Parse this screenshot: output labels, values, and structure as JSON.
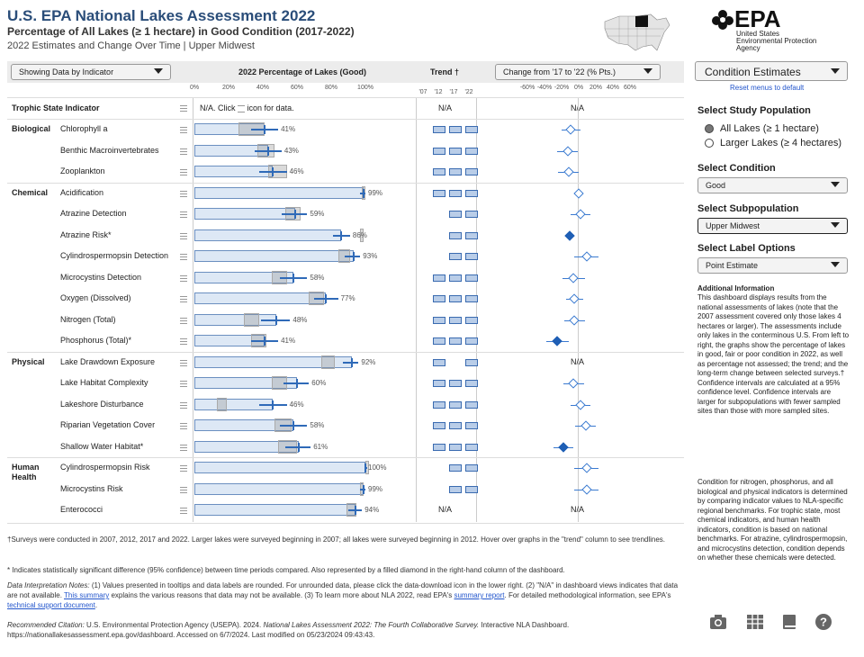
{
  "header": {
    "title": "U.S. EPA National Lakes Assessment 2022",
    "subtitle": "Percentage of All Lakes (≥ 1 hectare) in Good Condition (2017-2022)",
    "sub2": "2022 Estimates and Change Over Time | Upper Midwest"
  },
  "logo": {
    "mark": "EPA",
    "line1": "United States",
    "line2": "Environmental Protection",
    "line3": "Agency"
  },
  "controls": {
    "show": "Showing Data by Indicator",
    "pct_header": "2022 Percentage of Lakes (Good)",
    "trend_header": "Trend †",
    "change": "Change from '17 to '22 (% Pts.)"
  },
  "axis": {
    "pct_ticks": [
      "0%",
      "20%",
      "40%",
      "60%",
      "80%",
      "100%"
    ],
    "trend_ticks": [
      "'07",
      "'12",
      "'17",
      "'22"
    ],
    "chg_ticks": [
      "-60%",
      "-40%",
      "-20%",
      "0%",
      "20%",
      "40%",
      "60%"
    ]
  },
  "table": {
    "col_label": "Trophic State Indicator",
    "note": "N/A. Click",
    "note2": "icon for data.",
    "trophic_trend": "N/A",
    "trophic_change": "N/A",
    "rows": [
      {
        "cat": "Biological",
        "ind": "Chlorophyll a",
        "val": 41,
        "lbl": "41%",
        "ciL": 33,
        "ciH": 49,
        "box": [
          26,
          41
        ],
        "tr": [
          1,
          1,
          1
        ],
        "ch": -9,
        "chL": -20,
        "chH": 2,
        "f": false
      },
      {
        "cat": "",
        "ind": "Benthic Macroinvertebrates",
        "val": 43,
        "lbl": "43%",
        "ciL": 35,
        "ciH": 51,
        "box": [
          37,
          47
        ],
        "tr": [
          1,
          1,
          1
        ],
        "ch": -13,
        "chL": -25,
        "chH": -1,
        "f": false
      },
      {
        "cat": "",
        "ind": "Zooplankton",
        "val": 46,
        "lbl": "46%",
        "ciL": 38,
        "ciH": 54,
        "box": [
          43,
          54
        ],
        "tr": [
          1,
          1,
          1
        ],
        "ch": -12,
        "chL": -24,
        "chH": 0,
        "f": false
      },
      {
        "cat": "Chemical",
        "ind": "Acidification",
        "val": 99,
        "lbl": "99%",
        "ciL": 97,
        "ciH": 100,
        "box": [
          98,
          100
        ],
        "tr": [
          1,
          1,
          1
        ],
        "ch": 0,
        "chL": 0,
        "chH": 0,
        "f": false
      },
      {
        "cat": "",
        "ind": "Atrazine Detection",
        "val": 59,
        "lbl": "59%",
        "ciL": 51,
        "ciH": 66,
        "box": [
          53,
          62
        ],
        "tr": [
          0,
          1,
          1
        ],
        "ch": 2,
        "chL": -10,
        "chH": 14,
        "f": false
      },
      {
        "cat": "",
        "ind": "Atrazine Risk*",
        "val": 86,
        "lbl": "86%",
        "ciL": 81,
        "ciH": 91,
        "box": [
          97,
          99
        ],
        "tr": [
          0,
          1,
          1
        ],
        "ch": -11,
        "chL": -15,
        "chH": -6,
        "f": true
      },
      {
        "cat": "",
        "ind": "Cylindrospermopsin Detection",
        "val": 93,
        "lbl": "93%",
        "ciL": 88,
        "ciH": 97,
        "box": [
          84,
          91
        ],
        "tr": [
          0,
          1,
          1
        ],
        "ch": 9,
        "chL": -5,
        "chH": 23,
        "f": false
      },
      {
        "cat": "",
        "ind": "Microcystins Detection",
        "val": 58,
        "lbl": "58%",
        "ciL": 50,
        "ciH": 66,
        "box": [
          45,
          54
        ],
        "tr": [
          1,
          1,
          1
        ],
        "ch": -6,
        "chL": -19,
        "chH": 7,
        "f": false
      },
      {
        "cat": "",
        "ind": "Oxygen (Dissolved)",
        "val": 77,
        "lbl": "77%",
        "ciL": 70,
        "ciH": 84,
        "box": [
          67,
          76
        ],
        "tr": [
          1,
          1,
          1
        ],
        "ch": -5,
        "chL": -15,
        "chH": 5,
        "f": false
      },
      {
        "cat": "",
        "ind": "Nitrogen (Total)",
        "val": 48,
        "lbl": "48%",
        "ciL": 39,
        "ciH": 56,
        "box": [
          29,
          38
        ],
        "tr": [
          1,
          1,
          1
        ],
        "ch": -5,
        "chL": -17,
        "chH": 7,
        "f": false
      },
      {
        "cat": "",
        "ind": "Phosphorus (Total)*",
        "val": 41,
        "lbl": "41%",
        "ciL": 33,
        "ciH": 49,
        "box": [
          33,
          42
        ],
        "tr": [
          1,
          1,
          1
        ],
        "ch": -25,
        "chL": -38,
        "chH": -12,
        "f": true
      },
      {
        "cat": "Physical",
        "ind": "Lake Drawdown Exposure",
        "val": 92,
        "lbl": "92%",
        "ciL": 87,
        "ciH": 96,
        "box": [
          74,
          82
        ],
        "tr": [
          1,
          0,
          1
        ],
        "ch": null,
        "chL": null,
        "chH": null,
        "f": false,
        "chtext": "N/A"
      },
      {
        "cat": "",
        "ind": "Lake Habitat Complexity",
        "val": 60,
        "lbl": "60%",
        "ciL": 52,
        "ciH": 67,
        "box": [
          45,
          54
        ],
        "tr": [
          1,
          1,
          1
        ],
        "ch": -6,
        "chL": -18,
        "chH": 6,
        "f": false
      },
      {
        "cat": "",
        "ind": "Lakeshore Disturbance",
        "val": 46,
        "lbl": "46%",
        "ciL": 38,
        "ciH": 54,
        "box": [
          13,
          19
        ],
        "tr": [
          1,
          1,
          1
        ],
        "ch": 2,
        "chL": -10,
        "chH": 14,
        "f": false
      },
      {
        "cat": "",
        "ind": "Riparian Vegetation Cover",
        "val": 58,
        "lbl": "58%",
        "ciL": 50,
        "ciH": 66,
        "box": [
          47,
          57
        ],
        "tr": [
          1,
          1,
          1
        ],
        "ch": 8,
        "chL": -4,
        "chH": 20,
        "f": false
      },
      {
        "cat": "",
        "ind": "Shallow Water Habitat*",
        "val": 61,
        "lbl": "61%",
        "ciL": 53,
        "ciH": 68,
        "box": [
          49,
          60
        ],
        "tr": [
          1,
          1,
          1
        ],
        "ch": -18,
        "chL": -30,
        "chH": -6,
        "f": true
      },
      {
        "cat": "Human Health",
        "ind": "Cylindrospermopsin Risk",
        "val": 100,
        "lbl": "100%",
        "ciL": 100,
        "ciH": 100,
        "box": [
          100,
          100
        ],
        "tr": [
          0,
          1,
          1
        ],
        "ch": 9,
        "chL": -5,
        "chH": 23,
        "f": false
      },
      {
        "cat": "",
        "ind": "Microcystins Risk",
        "val": 99,
        "lbl": "99%",
        "ciL": 97,
        "ciH": 100,
        "box": [
          97,
          99
        ],
        "tr": [
          0,
          1,
          1
        ],
        "ch": 9,
        "chL": -5,
        "chH": 23,
        "f": false
      },
      {
        "cat": "",
        "ind": "Enterococci",
        "val": 94,
        "lbl": "94%",
        "ciL": 90,
        "ciH": 98,
        "box": [
          89,
          95
        ],
        "tr": [
          0,
          0,
          0
        ],
        "trtext": "N/A",
        "ch": null,
        "chL": null,
        "chH": null,
        "f": false,
        "chtext": "N/A"
      }
    ]
  },
  "sidebar": {
    "cond_est": "Condition Estimates",
    "reset": "Reset menus to default",
    "pop_h": "Select Study Population",
    "pop1": "All Lakes (≥ 1 hectare)",
    "pop2": "Larger Lakes (≥ 4 hectares)",
    "cond_h": "Select Condition",
    "cond": "Good",
    "sub_h": "Select Subpopulation",
    "sub": "Upper Midwest",
    "lbl_h": "Select Label Options",
    "lbl": "Point Estimate",
    "info_h": "Additional Information",
    "info1": "This dashboard displays results from the national assessments of lakes (note that the 2007 assessment covered only those lakes 4 hectares or larger). The assessments include only lakes in the conterminous U.S. From left to right, the graphs show the percentage of lakes in good, fair or poor condition in 2022, as well as percentage not assessed; the trend; and the long-term change between selected surveys.† Confidence intervals are calculated at a 95% confidence level. Confidence intervals are larger for subpopulations with fewer sampled sites than those with more sampled sites.",
    "info2": "Condition for nitrogen, phosphorus, and all biological and physical indicators is determined by comparing indicator values to NLA-specific regional benchmarks. For trophic state, most chemical indicators, and human health indicators, condition is based on national benchmarks. For atrazine, cylindrospermopsin, and microcystins detection, condition depends on whether these chemicals were detected."
  },
  "footer": {
    "f1": "†Surveys were conducted in 2007, 2012, 2017 and 2022. Larger lakes were surveyed beginning in 2007; all lakes were surveyed beginning in 2012. Hover over graphs in the \"trend\" column to see trendlines.",
    "f2": "* Indicates statistically significant difference (95% confidence) between time periods compared. Also represented by a filled diamond in the right-hand column of the dashboard.",
    "f3a": "Data Interpretation Notes:",
    "f3b": " (1) Values presented in tooltips and data labels are rounded. For unrounded data, please click the data-download icon in the lower right. (2) \"N/A\" in dashboard views indicates that data are not available. ",
    "f3c": "This summary",
    "f3d": " explains the various reasons that data may not be available. (3) To learn more about NLA 2022, read EPA's ",
    "f3e": "summary report",
    "f3f": ". For detailed methodological information, see EPA's ",
    "f3g": "technical support document",
    "f3h": ".",
    "f4a": "Recommended Citation:",
    "f4b": " U.S. Environmental Protection Agency (USEPA). 2024. ",
    "f4c": "National Lakes Assessment 2022: The Fourth Collaborative Survey.",
    "f4d": " Interactive NLA Dashboard. https://nationallakesassessment.epa.gov/dashboard. Accessed on 6/7/2024. Last modified on 05/23/2024 09:43:43."
  }
}
